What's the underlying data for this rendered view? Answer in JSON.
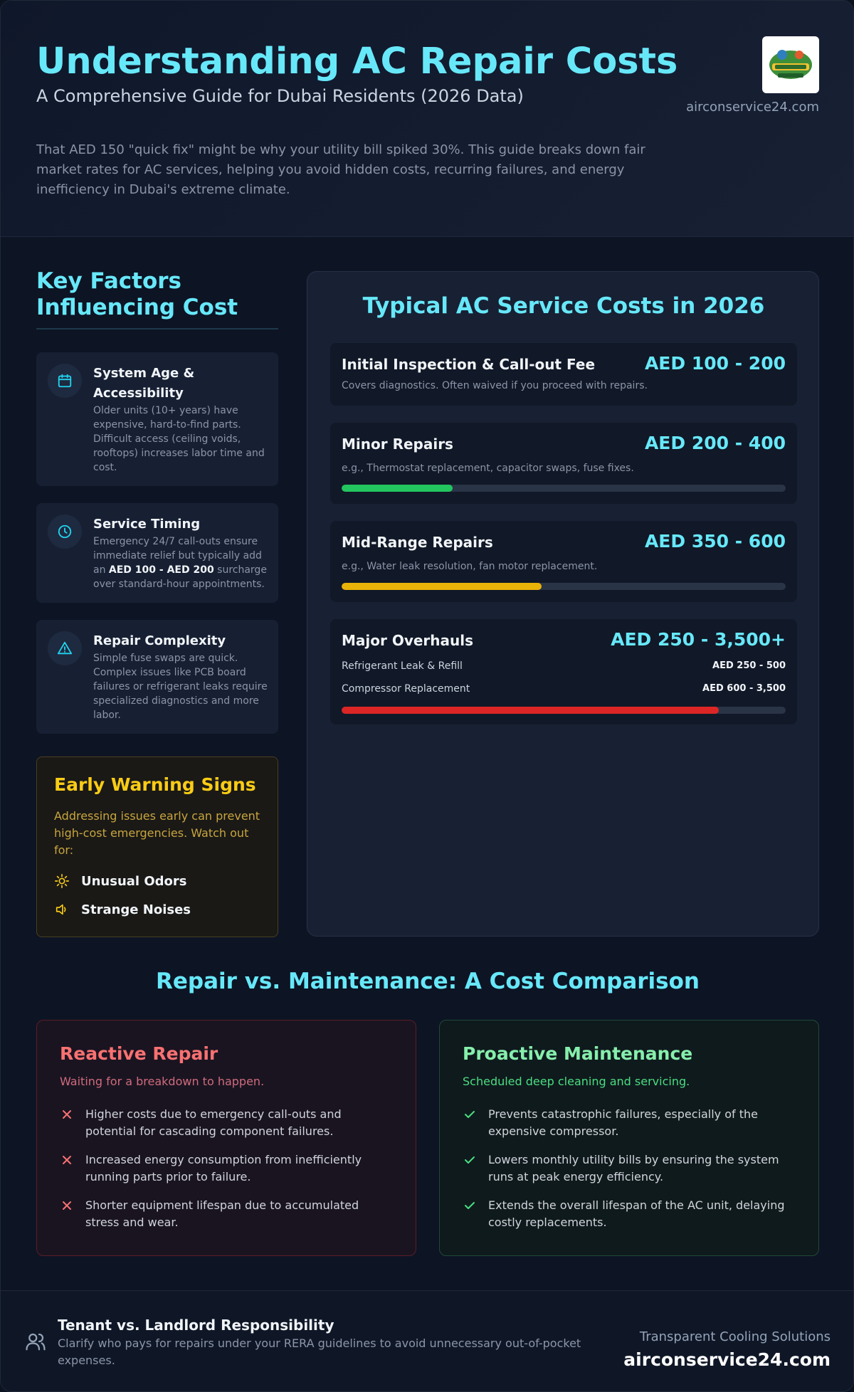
{
  "header": {
    "title": "Understanding AC Repair Costs",
    "subtitle": "A Comprehensive Guide for Dubai Residents (2026 Data)",
    "site": "airconservice24.com",
    "intro": "That AED 150 \"quick fix\" might be why your utility bill spiked 30%. This guide breaks down fair market rates for AC services, helping you avoid hidden costs, recurring failures, and energy inefficiency in Dubai's extreme climate."
  },
  "factors": {
    "title_line1": "Key Factors",
    "title_line2": "Influencing Cost",
    "items": [
      {
        "icon": "calendar-icon",
        "name": "System Age & Accessibility",
        "desc": "Older units (10+ years) have expensive, hard-to-find parts. Difficult access (ceiling voids, rooftops) increases labor time and cost."
      },
      {
        "icon": "clock-icon",
        "name": "Service Timing",
        "desc_before": "Emergency 24/7 call-outs ensure immediate relief but typically add an ",
        "desc_bold": "AED 100 - AED 200",
        "desc_after": " surcharge over standard-hour appointments."
      },
      {
        "icon": "warning-icon",
        "name": "Repair Complexity",
        "desc": "Simple fuse swaps are quick. Complex issues like PCB board failures or refrigerant leaks require specialized diagnostics and more labor."
      }
    ]
  },
  "warning": {
    "title": "Early Warning Signs",
    "desc": "Addressing issues early can prevent high-cost emergencies. Watch out for:",
    "items": [
      {
        "icon": "odor-icon",
        "label": "Unusual Odors"
      },
      {
        "icon": "speaker-icon",
        "label": "Strange Noises"
      }
    ]
  },
  "costs": {
    "title": "Typical AC Service Costs in 2026",
    "items": [
      {
        "name": "Initial Inspection & Call-out Fee",
        "price": "AED 100 - 200",
        "desc": "Covers diagnostics. Often waived if you proceed with repairs."
      },
      {
        "name": "Minor Repairs",
        "price": "AED 200 - 400",
        "desc": "e.g., Thermostat replacement, capacitor swaps, fuse fixes.",
        "level": 0.25,
        "color": "#22c55e"
      },
      {
        "name": "Mid-Range Repairs",
        "price": "AED 350 - 600",
        "desc": "e.g., Water leak resolution, fan motor replacement.",
        "level": 0.45,
        "color": "#eab308"
      },
      {
        "name": "Major Overhauls",
        "price": "AED 250 - 3,500+",
        "level": 0.85,
        "color": "#dc2626",
        "rows": [
          {
            "label": "Refrigerant Leak & Refill",
            "value": "AED 250 - 500"
          },
          {
            "label": "Compressor Replacement",
            "value": "AED 600 - 3,500"
          }
        ]
      }
    ]
  },
  "comparison": {
    "title": "Repair vs. Maintenance: A Cost Comparison",
    "repair": {
      "title": "Reactive Repair",
      "subtitle": "Waiting for a breakdown to happen.",
      "items": [
        "Higher costs due to emergency call-outs and potential for cascading component failures.",
        "Increased energy consumption from inefficiently running parts prior to failure.",
        "Shorter equipment lifespan due to accumulated stress and wear."
      ]
    },
    "maintenance": {
      "title": "Proactive Maintenance",
      "subtitle": "Scheduled deep cleaning and servicing.",
      "items": [
        "Prevents catastrophic failures, especially of the expensive compressor.",
        "Lowers monthly utility bills by ensuring the system runs at peak energy efficiency.",
        "Extends the overall lifespan of the AC unit, delaying costly replacements."
      ]
    }
  },
  "footer": {
    "title": "Tenant vs. Landlord Responsibility",
    "desc": "Clarify who pays for repairs under your RERA guidelines to avoid unnecessary out-of-pocket expenses.",
    "tagline": "Transparent Cooling Solutions",
    "site": "airconservice24.com"
  }
}
